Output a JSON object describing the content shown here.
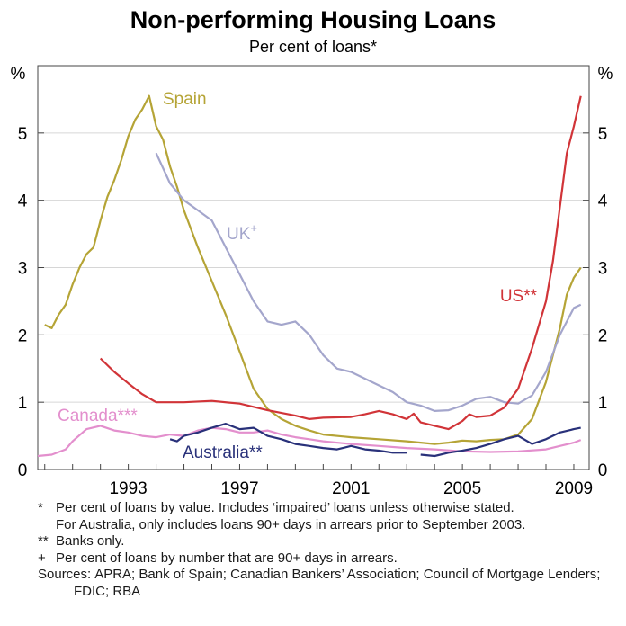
{
  "chart_data": {
    "type": "line",
    "title": "Non-performing Housing Loans",
    "subtitle": "Per cent of loans*",
    "y_unit_left": "%",
    "y_unit_right": "%",
    "ylim": [
      0,
      6
    ],
    "xlim": [
      1989.75,
      2009.55
    ],
    "y_ticks": [
      0,
      1,
      2,
      3,
      4,
      5
    ],
    "x_ticks": [
      1993,
      1997,
      2001,
      2005,
      2009
    ],
    "grid": "horizontal",
    "series": [
      {
        "name": "Spain",
        "color": "#b5a436",
        "points": [
          [
            1990.0,
            2.15
          ],
          [
            1990.25,
            2.1
          ],
          [
            1990.5,
            2.3
          ],
          [
            1990.75,
            2.45
          ],
          [
            1991.0,
            2.75
          ],
          [
            1991.25,
            3.0
          ],
          [
            1991.5,
            3.2
          ],
          [
            1991.75,
            3.3
          ],
          [
            1992.0,
            3.7
          ],
          [
            1992.25,
            4.05
          ],
          [
            1992.5,
            4.3
          ],
          [
            1992.75,
            4.6
          ],
          [
            1993.0,
            4.95
          ],
          [
            1993.25,
            5.2
          ],
          [
            1993.5,
            5.35
          ],
          [
            1993.75,
            5.55
          ],
          [
            1994.0,
            5.1
          ],
          [
            1994.25,
            4.9
          ],
          [
            1994.5,
            4.5
          ],
          [
            1994.75,
            4.2
          ],
          [
            1995.0,
            3.85
          ],
          [
            1995.5,
            3.3
          ],
          [
            1996.0,
            2.8
          ],
          [
            1996.5,
            2.3
          ],
          [
            1997.0,
            1.75
          ],
          [
            1997.5,
            1.2
          ],
          [
            1998.0,
            0.9
          ],
          [
            1998.5,
            0.75
          ],
          [
            1999.0,
            0.65
          ],
          [
            1999.5,
            0.58
          ],
          [
            2000.0,
            0.52
          ],
          [
            2001.0,
            0.48
          ],
          [
            2002.0,
            0.45
          ],
          [
            2003.0,
            0.42
          ],
          [
            2004.0,
            0.38
          ],
          [
            2004.5,
            0.4
          ],
          [
            2005.0,
            0.43
          ],
          [
            2005.5,
            0.42
          ],
          [
            2006.0,
            0.44
          ],
          [
            2006.5,
            0.45
          ],
          [
            2007.0,
            0.52
          ],
          [
            2007.5,
            0.75
          ],
          [
            2008.0,
            1.3
          ],
          [
            2008.5,
            2.1
          ],
          [
            2008.75,
            2.6
          ],
          [
            2009.0,
            2.85
          ],
          [
            2009.25,
            3.0
          ]
        ]
      },
      {
        "name": "UK",
        "label_suffix": "+",
        "color": "#a4a6cc",
        "points": [
          [
            1994.0,
            4.7
          ],
          [
            1994.5,
            4.25
          ],
          [
            1995.0,
            4.0
          ],
          [
            1995.5,
            3.85
          ],
          [
            1996.0,
            3.7
          ],
          [
            1996.5,
            3.3
          ],
          [
            1997.0,
            2.9
          ],
          [
            1997.5,
            2.5
          ],
          [
            1998.0,
            2.2
          ],
          [
            1998.5,
            2.15
          ],
          [
            1999.0,
            2.2
          ],
          [
            1999.5,
            2.0
          ],
          [
            2000.0,
            1.7
          ],
          [
            2000.5,
            1.5
          ],
          [
            2001.0,
            1.45
          ],
          [
            2001.5,
            1.35
          ],
          [
            2002.0,
            1.25
          ],
          [
            2002.5,
            1.15
          ],
          [
            2003.0,
            1.0
          ],
          [
            2003.5,
            0.95
          ],
          [
            2004.0,
            0.87
          ],
          [
            2004.5,
            0.88
          ],
          [
            2005.0,
            0.95
          ],
          [
            2005.5,
            1.05
          ],
          [
            2006.0,
            1.08
          ],
          [
            2006.5,
            1.0
          ],
          [
            2007.0,
            0.98
          ],
          [
            2007.5,
            1.1
          ],
          [
            2008.0,
            1.45
          ],
          [
            2008.5,
            2.0
          ],
          [
            2009.0,
            2.4
          ],
          [
            2009.25,
            2.45
          ]
        ]
      },
      {
        "name": "US",
        "label_suffix": "**",
        "color": "#d13438",
        "points": [
          [
            1992.0,
            1.65
          ],
          [
            1992.5,
            1.45
          ],
          [
            1993.0,
            1.28
          ],
          [
            1993.5,
            1.12
          ],
          [
            1994.0,
            1.0
          ],
          [
            1995.0,
            1.0
          ],
          [
            1996.0,
            1.02
          ],
          [
            1997.0,
            0.98
          ],
          [
            1998.0,
            0.88
          ],
          [
            1999.0,
            0.8
          ],
          [
            1999.5,
            0.75
          ],
          [
            2000.0,
            0.77
          ],
          [
            2001.0,
            0.78
          ],
          [
            2001.5,
            0.82
          ],
          [
            2002.0,
            0.87
          ],
          [
            2002.5,
            0.82
          ],
          [
            2003.0,
            0.75
          ],
          [
            2003.25,
            0.83
          ],
          [
            2003.5,
            0.7
          ],
          [
            2004.0,
            0.65
          ],
          [
            2004.5,
            0.6
          ],
          [
            2005.0,
            0.72
          ],
          [
            2005.25,
            0.82
          ],
          [
            2005.5,
            0.78
          ],
          [
            2006.0,
            0.8
          ],
          [
            2006.5,
            0.92
          ],
          [
            2007.0,
            1.2
          ],
          [
            2007.5,
            1.8
          ],
          [
            2008.0,
            2.5
          ],
          [
            2008.25,
            3.1
          ],
          [
            2008.5,
            3.9
          ],
          [
            2008.75,
            4.7
          ],
          [
            2009.0,
            5.1
          ],
          [
            2009.25,
            5.55
          ]
        ]
      },
      {
        "name": "Canada",
        "label_suffix": "***",
        "color": "#e38fcd",
        "points": [
          [
            1989.75,
            0.2
          ],
          [
            1990.25,
            0.22
          ],
          [
            1990.75,
            0.3
          ],
          [
            1991.0,
            0.42
          ],
          [
            1991.5,
            0.6
          ],
          [
            1992.0,
            0.65
          ],
          [
            1992.5,
            0.58
          ],
          [
            1993.0,
            0.55
          ],
          [
            1993.5,
            0.5
          ],
          [
            1994.0,
            0.48
          ],
          [
            1994.5,
            0.52
          ],
          [
            1995.0,
            0.5
          ],
          [
            1995.5,
            0.58
          ],
          [
            1996.0,
            0.62
          ],
          [
            1996.5,
            0.6
          ],
          [
            1997.0,
            0.55
          ],
          [
            1997.5,
            0.55
          ],
          [
            1998.0,
            0.58
          ],
          [
            1998.5,
            0.52
          ],
          [
            1999.0,
            0.48
          ],
          [
            1999.5,
            0.45
          ],
          [
            2000.0,
            0.42
          ],
          [
            2001.0,
            0.38
          ],
          [
            2002.0,
            0.35
          ],
          [
            2003.0,
            0.32
          ],
          [
            2004.0,
            0.3
          ],
          [
            2005.0,
            0.27
          ],
          [
            2006.0,
            0.26
          ],
          [
            2007.0,
            0.27
          ],
          [
            2008.0,
            0.3
          ],
          [
            2008.5,
            0.35
          ],
          [
            2009.0,
            0.4
          ],
          [
            2009.25,
            0.44
          ]
        ]
      },
      {
        "name": "Australia",
        "label_suffix": "**",
        "color": "#29317a",
        "points": [
          [
            1994.5,
            0.45
          ],
          [
            1994.75,
            0.42
          ],
          [
            1995.0,
            0.5
          ],
          [
            1995.5,
            0.55
          ],
          [
            1996.0,
            0.62
          ],
          [
            1996.5,
            0.68
          ],
          [
            1997.0,
            0.6
          ],
          [
            1997.5,
            0.62
          ],
          [
            1998.0,
            0.5
          ],
          [
            1998.5,
            0.45
          ],
          [
            1999.0,
            0.38
          ],
          [
            1999.5,
            0.35
          ],
          [
            2000.0,
            0.32
          ],
          [
            2000.5,
            0.3
          ],
          [
            2001.0,
            0.35
          ],
          [
            2001.5,
            0.3
          ],
          [
            2002.0,
            0.28
          ],
          [
            2002.5,
            0.25
          ],
          [
            2003.0,
            0.25
          ],
          [
            2003.25,
            null
          ],
          [
            2003.5,
            0.22
          ],
          [
            2004.0,
            0.2
          ],
          [
            2004.5,
            0.25
          ],
          [
            2005.0,
            0.28
          ],
          [
            2005.5,
            0.32
          ],
          [
            2006.0,
            0.38
          ],
          [
            2006.5,
            0.45
          ],
          [
            2007.0,
            0.5
          ],
          [
            2007.5,
            0.38
          ],
          [
            2008.0,
            0.45
          ],
          [
            2008.5,
            0.55
          ],
          [
            2009.0,
            0.6
          ],
          [
            2009.25,
            0.62
          ]
        ]
      }
    ],
    "series_labels": [
      {
        "text": "Spain",
        "series": "Spain"
      },
      {
        "text": "UK",
        "sup": "+",
        "series": "UK"
      },
      {
        "text": "US**",
        "series": "US"
      },
      {
        "text": "Canada***",
        "series": "Canada"
      },
      {
        "text": "Australia**",
        "series": "Australia"
      }
    ]
  },
  "notes": [
    {
      "marker": "*",
      "text": "Per cent of loans by value. Includes ‘impaired’ loans unless otherwise stated.\nFor Australia, only includes loans 90+ days in arrears prior to September 2003."
    },
    {
      "marker": "**",
      "text": "Banks only."
    },
    {
      "marker": "+",
      "text": "Per cent of loans by number that are 90+ days in arrears."
    }
  ],
  "sources": {
    "prefix": "Sources:",
    "text": "APRA; Bank of Spain; Canadian Bankers’ Association; Council of Mortgage Lenders; FDIC; RBA"
  }
}
